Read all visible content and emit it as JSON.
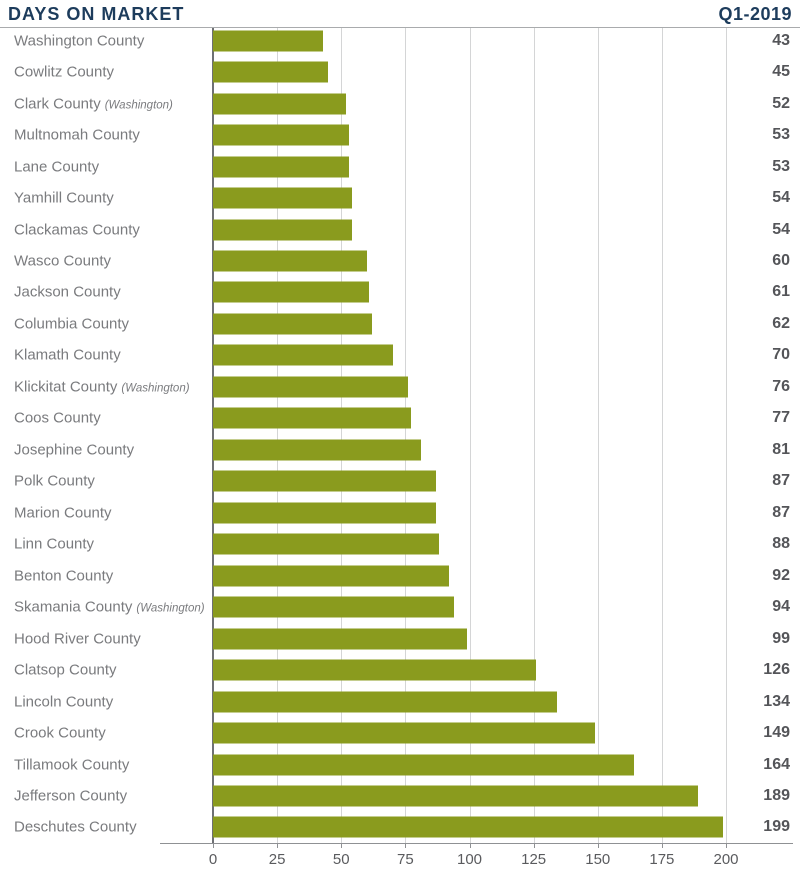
{
  "header": {
    "title": "DAYS ON MARKET",
    "period": "Q1-2019"
  },
  "colors": {
    "title_navy": "#1d3c5c",
    "bar_green": "#8a9b1e",
    "label_gray": "#7a7b7e",
    "value_gray": "#545559",
    "gridline": "#d4d5d6",
    "axis_line": "#8f9194"
  },
  "chart_data": {
    "type": "bar",
    "orientation": "horizontal",
    "title": "DAYS ON MARKET",
    "subtitle": "Q1-2019",
    "xlabel": "",
    "ylabel": "",
    "xlim": [
      0,
      200
    ],
    "xticks": [
      0,
      25,
      50,
      75,
      100,
      125,
      150,
      175,
      200
    ],
    "grid": true,
    "value_labels_position": "right",
    "categories": [
      "Washington County",
      "Cowlitz County",
      "Clark County",
      "Multnomah County",
      "Lane County",
      "Yamhill County",
      "Clackamas County",
      "Wasco County",
      "Jackson County",
      "Columbia County",
      "Klamath County",
      "Klickitat County",
      "Coos County",
      "Josephine County",
      "Polk County",
      "Marion County",
      "Linn County",
      "Benton County",
      "Skamania County",
      "Hood River County",
      "Clatsop County",
      "Lincoln County",
      "Crook County",
      "Tillamook County",
      "Jefferson County",
      "Deschutes County"
    ],
    "category_notes": [
      "",
      "",
      "(Washington)",
      "",
      "",
      "",
      "",
      "",
      "",
      "",
      "",
      "(Washington)",
      "",
      "",
      "",
      "",
      "",
      "",
      "(Washington)",
      "",
      "",
      "",
      "",
      "",
      "",
      ""
    ],
    "values": [
      43,
      45,
      52,
      53,
      53,
      54,
      54,
      60,
      61,
      62,
      70,
      76,
      77,
      81,
      87,
      87,
      88,
      92,
      94,
      99,
      126,
      134,
      149,
      164,
      189,
      199
    ]
  }
}
